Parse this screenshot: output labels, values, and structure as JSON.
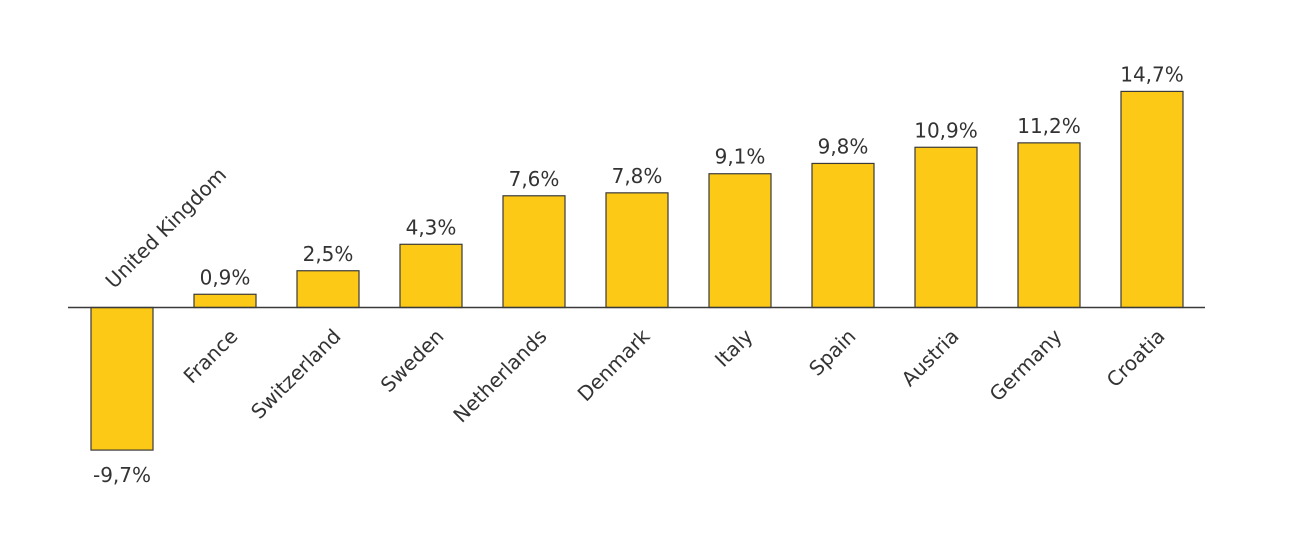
{
  "chart_data": {
    "type": "bar",
    "categories": [
      "United Kingdom",
      "France",
      "Switzerland",
      "Sweden",
      "Netherlands",
      "Denmark",
      "Italy",
      "Spain",
      "Austria",
      "Germany",
      "Croatia"
    ],
    "values": [
      -9.7,
      0.9,
      2.5,
      4.3,
      7.6,
      7.8,
      9.1,
      9.8,
      10.9,
      11.2,
      14.7
    ],
    "value_labels": [
      "-9,7%",
      "0,9%",
      "2,5%",
      "4,3%",
      "7,6%",
      "7,8%",
      "9,1%",
      "9,8%",
      "10,9%",
      "11,2%",
      "14,7%"
    ],
    "title": "",
    "xlabel": "",
    "ylabel": "",
    "ylim": [
      -12,
      16
    ],
    "grid": false,
    "legend": "none",
    "bar_color": "#FDC917",
    "bar_outline_color": "#3A3A3A",
    "text_color": "#333333"
  }
}
